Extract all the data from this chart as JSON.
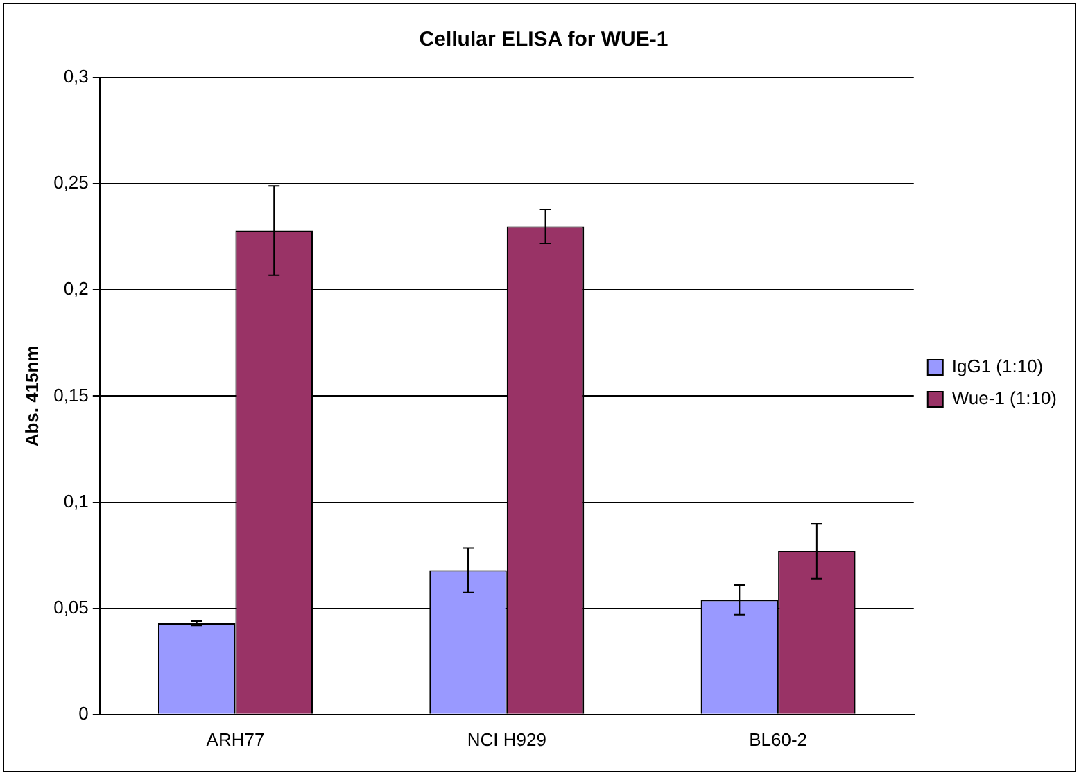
{
  "chart_data": {
    "type": "bar",
    "title": "Cellular ELISA for WUE-1",
    "ylabel": "Abs. 415nm",
    "categories": [
      "ARH77",
      "NCI H929",
      "BL60-2"
    ],
    "series": [
      {
        "name": "IgG1 (1:10)",
        "color": "#9999ff",
        "values": [
          0.043,
          0.068,
          0.054
        ],
        "errors": [
          0.001,
          0.0105,
          0.007
        ]
      },
      {
        "name": "Wue-1 (1:10)",
        "color": "#993366",
        "values": [
          0.228,
          0.23,
          0.077
        ],
        "errors": [
          0.021,
          0.008,
          0.013
        ]
      }
    ],
    "ylim": [
      0,
      0.3
    ],
    "yticks": [
      {
        "value": 0,
        "label": "0"
      },
      {
        "value": 0.05,
        "label": "0,05"
      },
      {
        "value": 0.1,
        "label": "0,1"
      },
      {
        "value": 0.15,
        "label": "0,15"
      },
      {
        "value": 0.2,
        "label": "0,2"
      },
      {
        "value": 0.25,
        "label": "0,25"
      },
      {
        "value": 0.3,
        "label": "0,3"
      }
    ],
    "grid": "y",
    "legend": "right"
  }
}
